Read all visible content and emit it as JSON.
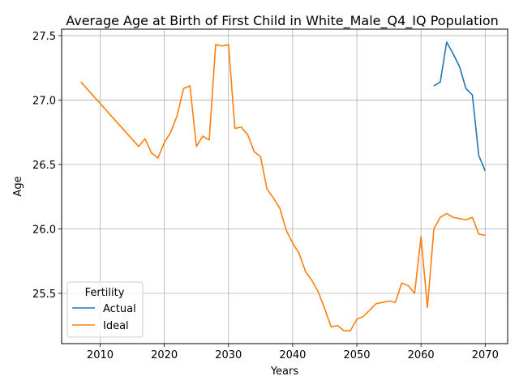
{
  "chart_data": {
    "type": "line",
    "title": "Average Age at Birth of First Child in White_Male_Q4_IQ Population",
    "xlabel": "Years",
    "ylabel": "Age",
    "xlim": [
      2004,
      2073.5
    ],
    "ylim": [
      25.11,
      27.55
    ],
    "xticks": [
      2010,
      2020,
      2030,
      2040,
      2050,
      2060,
      2070
    ],
    "yticks": [
      25.5,
      26.0,
      26.5,
      27.0,
      27.5
    ],
    "ytick_labels": [
      "25.5",
      "26.0",
      "26.5",
      "27.0",
      "27.5"
    ],
    "grid": true,
    "legend": {
      "title": "Fertility",
      "placement": "lower-left"
    },
    "series": [
      {
        "name": "Actual",
        "color": "#1f77b4",
        "x": [
          2062,
          2063,
          2064,
          2065,
          2066,
          2067,
          2068,
          2069,
          2070
        ],
        "y": [
          27.11,
          27.14,
          27.45,
          27.36,
          27.26,
          27.09,
          27.04,
          26.57,
          26.45
        ]
      },
      {
        "name": "Ideal",
        "color": "#ff7f0e",
        "x": [
          2007,
          2016,
          2017,
          2018,
          2019,
          2020,
          2021,
          2022,
          2023,
          2024,
          2025,
          2026,
          2027,
          2028,
          2029,
          2030,
          2031,
          2032,
          2033,
          2034,
          2035,
          2036,
          2037,
          2038,
          2039,
          2040,
          2041,
          2042,
          2043,
          2044,
          2045,
          2046,
          2047,
          2048,
          2049,
          2050,
          2051,
          2052,
          2053,
          2054,
          2055,
          2056,
          2057,
          2058,
          2059,
          2060,
          2061,
          2062,
          2063,
          2064,
          2065,
          2066,
          2067,
          2068,
          2069,
          2070
        ],
        "y": [
          27.14,
          26.64,
          26.7,
          26.59,
          26.55,
          26.67,
          26.75,
          26.88,
          27.09,
          27.11,
          26.64,
          26.72,
          26.69,
          27.43,
          27.42,
          27.43,
          26.78,
          26.79,
          26.73,
          26.6,
          26.56,
          26.31,
          26.24,
          26.16,
          25.99,
          25.89,
          25.81,
          25.67,
          25.6,
          25.51,
          25.38,
          25.24,
          25.25,
          25.21,
          25.21,
          25.3,
          25.32,
          25.37,
          25.42,
          25.43,
          25.44,
          25.43,
          25.58,
          25.56,
          25.5,
          25.94,
          25.39,
          26.0,
          26.09,
          26.12,
          26.09,
          26.08,
          26.07,
          26.09,
          25.96,
          25.95
        ]
      }
    ]
  }
}
